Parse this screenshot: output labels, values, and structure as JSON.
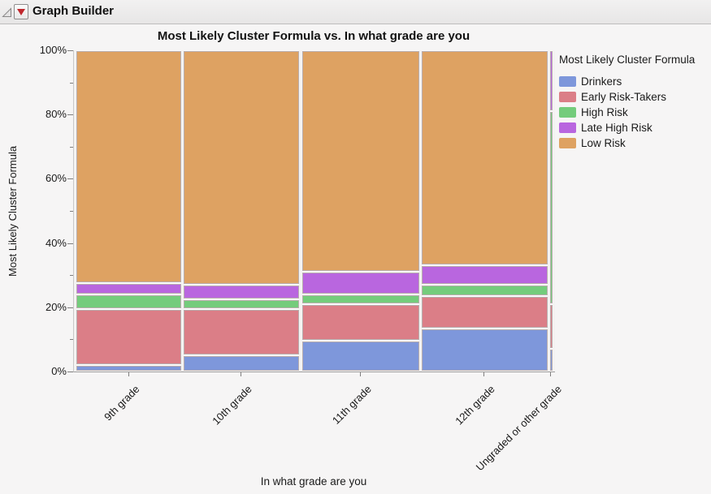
{
  "window": {
    "title": "Graph Builder"
  },
  "icons": {
    "outline_disclosure": "open-triangle-icon",
    "red_menu_triangle": "red-triangle-menu-icon"
  },
  "chart": {
    "title": "Most Likely Cluster Formula vs. In what grade are you",
    "y_axis_title": "Most Likely Cluster Formula",
    "x_axis_title": "In what grade are you",
    "legend_title": "Most Likely Cluster Formula"
  },
  "chart_data": {
    "type": "bar",
    "stacked": true,
    "normalized": "percent",
    "title": "Most Likely Cluster Formula vs. In what grade are you",
    "xlabel": "In what grade are you",
    "ylabel": "Most Likely Cluster Formula",
    "ylim": [
      0,
      100
    ],
    "grid": false,
    "legend_position": "right",
    "y_tick_values": [
      0,
      20,
      40,
      60,
      80,
      100
    ],
    "y_tick_labels": [
      "0%",
      "20%",
      "40%",
      "60%",
      "80%",
      "100%"
    ],
    "y_minor_tick_values": [
      10,
      30,
      50,
      70,
      90
    ],
    "categories": [
      "9th grade",
      "10th grade",
      "11th grade",
      "12th grade",
      "Ungraded or other grade"
    ],
    "bar_width_fractions": [
      0.225,
      0.248,
      0.252,
      0.269,
      0.006
    ],
    "series": [
      {
        "name": "Drinkers",
        "color": "#7E97DB",
        "values": [
          2,
          5,
          9.5,
          13.5,
          7
        ]
      },
      {
        "name": "Early Risk-Takers",
        "color": "#DB7E87",
        "values": [
          17.5,
          14.5,
          11.5,
          10,
          14
        ]
      },
      {
        "name": "High Risk",
        "color": "#74CC7C",
        "values": [
          4.5,
          3,
          3,
          3.5,
          60
        ]
      },
      {
        "name": "Late High Risk",
        "color": "#B966DF",
        "values": [
          3.5,
          4.5,
          7,
          6,
          19
        ]
      },
      {
        "name": "Low Risk",
        "color": "#DEA262",
        "values": [
          72.5,
          73,
          69,
          67,
          0
        ]
      }
    ]
  }
}
